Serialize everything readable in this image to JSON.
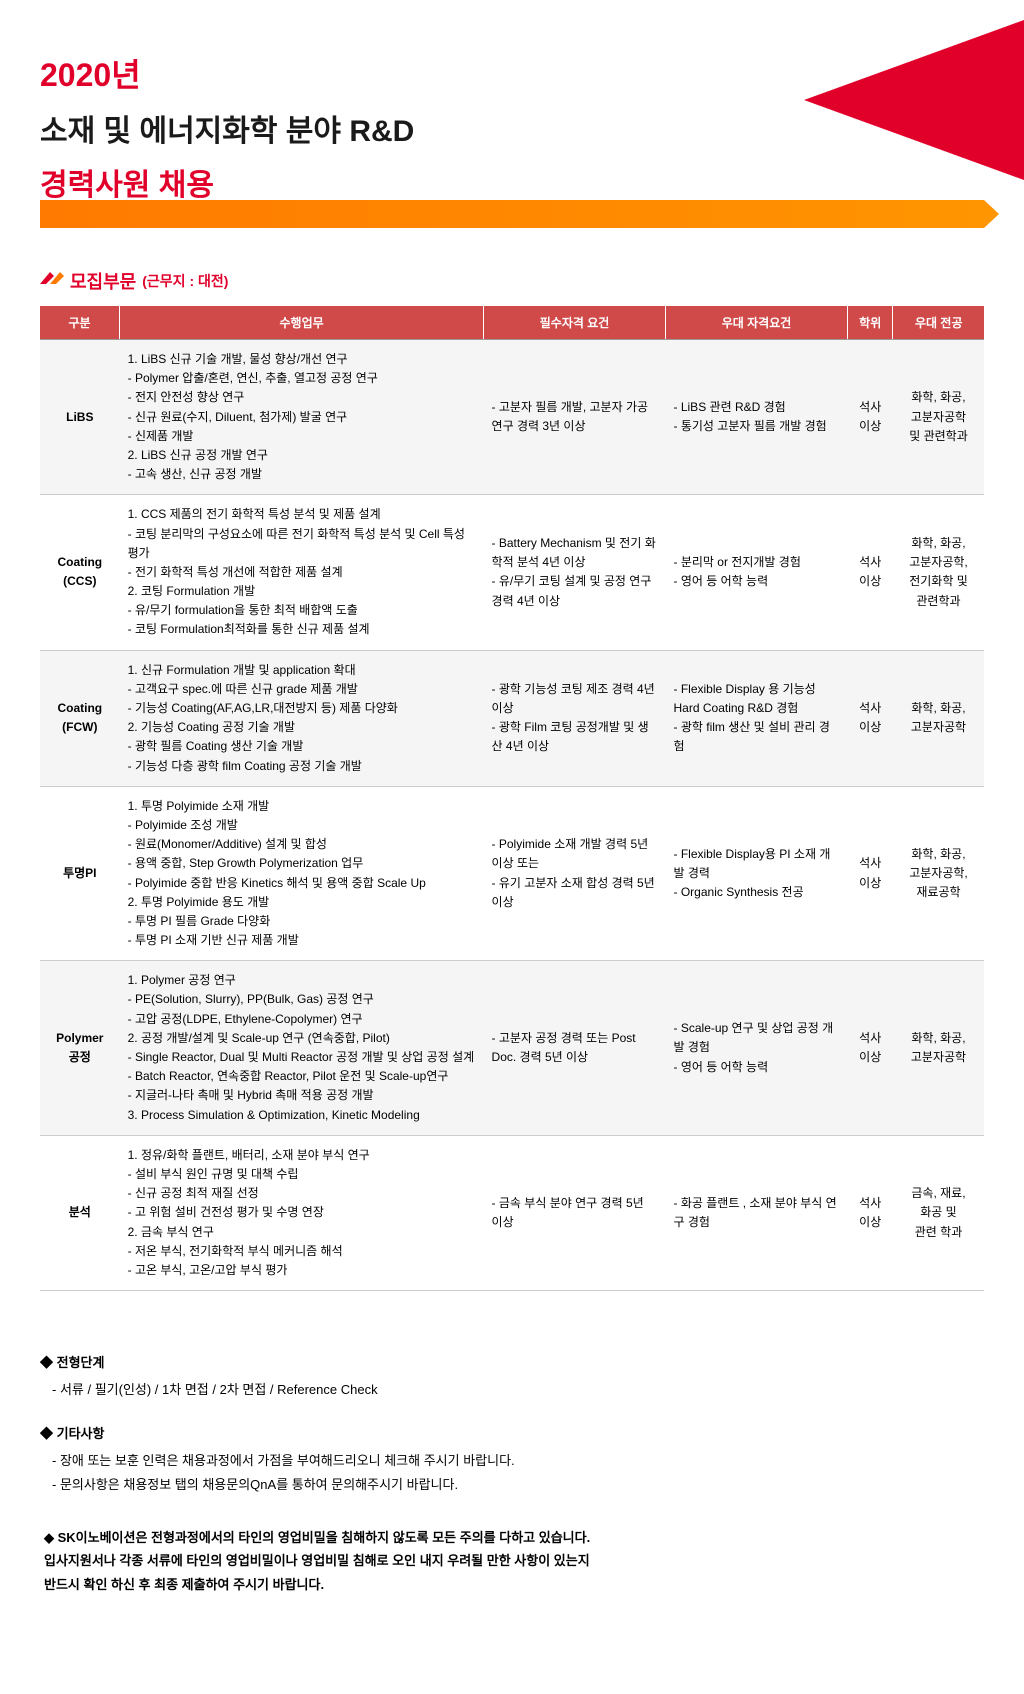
{
  "header": {
    "year": "2020년",
    "title": "소재 및 에너지화학 분야 R&D",
    "subtitle": "경력사원 채용"
  },
  "section": {
    "title": "모집부문",
    "subtitle": "(근무지 : 대전)"
  },
  "table": {
    "headerBg": "#d14a4a",
    "columns": [
      "구분",
      "수행업무",
      "필수자격 요건",
      "우대 자격요건",
      "학위",
      "우대 전공"
    ],
    "rows": [
      {
        "category": "LiBS",
        "duties": "1. LiBS 신규 기술 개발, 물성 향상/개선 연구\n - Polymer 압출/혼련, 연신, 추출, 열고정 공정 연구\n - 전지 안전성 향상 연구\n - 신규 원료(수지, Diluent, 첨가제) 발굴 연구\n - 신제품 개발\n2. LiBS 신규 공정 개발 연구\n - 고속 생산, 신규 공정 개발",
        "required": "- 고분자 필름 개발, 고분자 가공 연구 경력 3년 이상",
        "preferred": "- LiBS 관련 R&D 경험\n- 통기성 고분자 필름 개발 경험",
        "degree": "석사\n이상",
        "major": "화학, 화공,\n고분자공학\n및 관련학과"
      },
      {
        "category": "Coating\n(CCS)",
        "duties": "1. CCS 제품의 전기 화학적 특성 분석 및 제품 설계\n - 코팅 분리막의 구성요소에 따른 전기 화학적 특성 분석 및 Cell 특성 평가\n - 전기 화학적 특성 개선에 적합한 제품 설계\n2. 코팅 Formulation 개발\n - 유/무기 formulation을 통한 최적 배합액 도출\n - 코팅 Formulation최적화를 통한 신규 제품 설계",
        "required": "- Battery Mechanism 및 전기 화학적 분석 4년 이상\n- 유/무기 코팅 설계 및 공정 연구 경력 4년 이상",
        "preferred": "- 분리막 or 전지개발 경험\n- 영어 등 어학 능력",
        "degree": "석사\n이상",
        "major": "화학, 화공,\n고분자공학,\n전기화학 및\n관련학과"
      },
      {
        "category": "Coating\n(FCW)",
        "duties": "1. 신규 Formulation 개발 및 application 확대\n - 고객요구 spec.에 따른 신규 grade 제품 개발\n - 기능성 Coating(AF,AG,LR,대전방지 등) 제품 다양화\n2. 기능성 Coating 공정 기술 개발\n - 광학 필름 Coating 생산 기술 개발\n - 기능성 다층 광학 film Coating 공정 기술 개발",
        "required": "- 광학 기능성 코팅 제조 경력 4년 이상\n- 광학 Film 코팅 공정개발 및 생산 4년 이상",
        "preferred": "- Flexible Display 용 기능성 Hard Coating R&D 경험\n- 광학 film 생산 및 설비 관리 경험",
        "degree": "석사\n이상",
        "major": "화학, 화공,\n고분자공학"
      },
      {
        "category": "투명PI",
        "duties": "1. 투명 Polyimide 소재 개발\n - Polyimide 조성 개발\n - 원료(Monomer/Additive) 설계 및 합성\n - 용액 중합, Step Growth Polymerization 업무\n - Polyimide 중합 반응 Kinetics 해석 및 용액 중합 Scale Up\n2. 투명 Polyimide 용도 개발\n - 투명 PI 필름 Grade 다양화\n - 투명 PI 소재 기반 신규 제품 개발",
        "required": "- Polyimide 소재 개발 경력 5년 이상 또는\n- 유기 고분자 소재 합성 경력 5년 이상",
        "preferred": "- Flexible Display용 PI 소재 개발 경력\n- Organic Synthesis 전공",
        "degree": "석사\n이상",
        "major": "화학, 화공,\n고분자공학,\n재료공학"
      },
      {
        "category": "Polymer\n공정",
        "duties": "1. Polymer 공정 연구\n - PE(Solution, Slurry), PP(Bulk, Gas) 공정 연구\n - 고압 공정(LDPE, Ethylene-Copolymer) 연구\n2. 공정 개발/설계 및 Scale-up 연구 (연속중합, Pilot)\n - Single Reactor, Dual 및 Multi Reactor 공정 개발 및 상업 공정 설계\n - Batch Reactor, 연속중합 Reactor, Pilot 운전 및 Scale-up연구\n - 지글러-나타 촉매 및 Hybrid 촉매 적용 공정 개발\n3. Process Simulation & Optimization, Kinetic Modeling",
        "required": "- 고분자 공정 경력 또는 Post Doc. 경력 5년 이상",
        "preferred": "- Scale-up 연구 및 상업 공정 개발 경험\n- 영어 등 어학 능력",
        "degree": "석사\n이상",
        "major": "화학, 화공,\n고분자공학"
      },
      {
        "category": "분석",
        "duties": "1. 정유/화학 플랜트, 배터리, 소재 분야 부식 연구\n - 설비 부식 원인 규명 및 대책 수립\n - 신규 공정 최적 재질 선정\n - 고 위험 설비 건전성 평가 및 수명 연장\n2. 금속 부식 연구\n - 저온 부식, 전기화학적 부식 메커니즘 해석\n - 고온 부식, 고온/고압 부식 평가",
        "required": "- 금속 부식 분야 연구 경력 5년 이상",
        "preferred": "- 화공 플랜트 , 소재 분야 부식 연구 경험",
        "degree": "석사\n이상",
        "major": "금속, 재료,\n화공 및\n관련 학과"
      }
    ]
  },
  "footer": {
    "process": {
      "heading": "◆ 전형단계",
      "text": "- 서류 / 필기(인성) / 1차 면접 / 2차 면접 / Reference Check"
    },
    "other": {
      "heading": "◆ 기타사항",
      "text1": "- 장애 또는 보훈 인력은 채용과정에서 가점을 부여해드리오니 체크해 주시기 바랍니다.",
      "text2": "- 문의사항은 채용정보 탭의 채용문의QnA를 통하여 문의해주시기 바랍니다."
    },
    "note": "◆ SK이노베이션은 전형과정에서의 타인의 영업비밀을 침해하지 않도록 모든 주의를 다하고 있습니다.\n    입사지원서나 각종 서류에 타인의 영업비밀이나 영업비밀 침해로 오인 내지 우려될 만한 사항이 있는지\n    반드시 확인 하신 후 최종 제출하여 주시기 바랍니다."
  }
}
